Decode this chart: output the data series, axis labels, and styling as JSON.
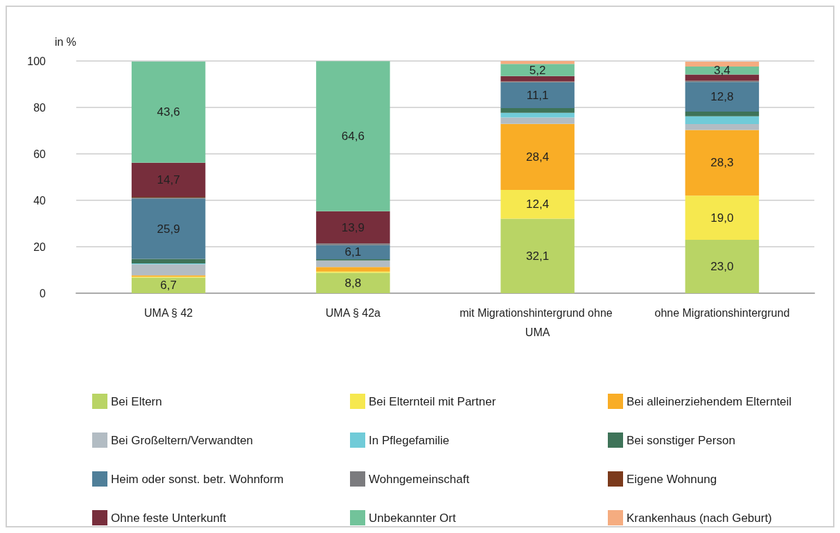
{
  "chart_data": {
    "type": "bar",
    "stacked": true,
    "ylabel": "in %",
    "categories": [
      "UMA § 42",
      "UMA § 42a",
      "mit Migrationshintergrund ohne UMA",
      "ohne Migrationshintergrund"
    ],
    "ylim": [
      0,
      100
    ],
    "yticks": [
      0,
      20,
      40,
      60,
      80,
      100
    ],
    "grid": "y",
    "legend": "bottom",
    "series": [
      {
        "name": "Bei Eltern",
        "color": "#b9d465",
        "values": [
          6.7,
          8.8,
          32.1,
          23.0
        ],
        "value_labels": [
          "6,7",
          "8,8",
          "32,1",
          "23,0"
        ]
      },
      {
        "name": "Bei Elternteil mit Partner",
        "color": "#f6e84f",
        "values": [
          0.4,
          0.5,
          12.4,
          19.0
        ],
        "value_labels": [
          null,
          null,
          "12,4",
          "19,0"
        ]
      },
      {
        "name": "Bei alleinerziehendem Elternteil",
        "color": "#f9ad26",
        "values": [
          0.6,
          2.0,
          28.4,
          28.3
        ],
        "value_labels": [
          null,
          null,
          "28,4",
          "28,3"
        ]
      },
      {
        "name": "Bei Großeltern/Verwandten",
        "color": "#b2bcc3",
        "values": [
          4.8,
          2.8,
          2.8,
          2.5
        ]
      },
      {
        "name": "In Pflegefamilie",
        "color": "#70cbd8",
        "values": [
          0.3,
          0,
          2.0,
          3.4
        ]
      },
      {
        "name": "Bei sonstiger Person",
        "color": "#3e7358",
        "values": [
          2.0,
          0.5,
          2.0,
          2.0
        ]
      },
      {
        "name": "Heim oder sonst. betr. Wohnform",
        "color": "#4f7f99",
        "values": [
          25.9,
          6.1,
          11.1,
          12.8
        ],
        "value_labels": [
          "25,9",
          "6,1",
          "11,1",
          "12,8"
        ]
      },
      {
        "name": "Wohngemeinschaft",
        "color": "#7b7b7e",
        "values": [
          0.5,
          0.7,
          0.3,
          0.4
        ]
      },
      {
        "name": "Eigene Wohnung",
        "color": "#7b3a1c",
        "values": [
          0.3,
          0,
          0.1,
          0.1
        ]
      },
      {
        "name": "Ohne feste Unterkunft",
        "color": "#772e3c",
        "values": [
          14.7,
          13.9,
          2.3,
          2.7
        ],
        "value_labels": [
          "14,7",
          "13,9",
          null,
          null
        ]
      },
      {
        "name": "Unbekannter Ort",
        "color": "#72c39a",
        "values": [
          43.6,
          64.6,
          5.2,
          3.4
        ],
        "value_labels": [
          "43,6",
          "64,6",
          "5,2",
          "3,4"
        ]
      },
      {
        "name": "Krankenhaus (nach Geburt)",
        "color": "#f5ac80",
        "values": [
          0,
          0,
          1.3,
          2.1
        ]
      }
    ]
  }
}
